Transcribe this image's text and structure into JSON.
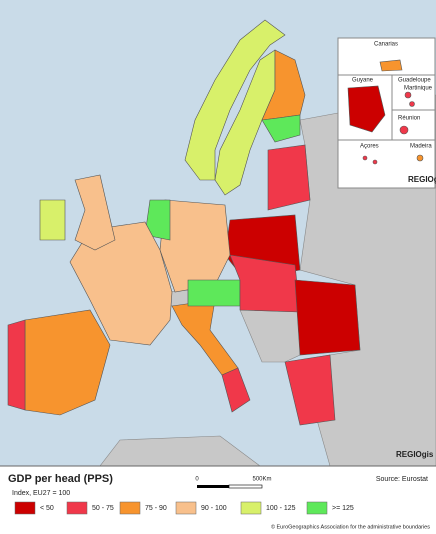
{
  "map": {
    "title": "GDP per head (PPS)",
    "subtitle": "Index, EU27 = 100",
    "source": "Source: Eurostat",
    "scale_labels": [
      "0",
      "500Km"
    ],
    "copyright": "© EuroGeographics Association for the administrative boundaries",
    "logo": "REGIOgis",
    "legend": [
      {
        "label": "< 50",
        "color": "#cc0000"
      },
      {
        "label": "50 - 75",
        "color": "#f0384a"
      },
      {
        "label": "75 - 90",
        "color": "#f7942e"
      },
      {
        "label": "90 - 100",
        "color": "#f8c08c"
      },
      {
        "label": "100 - 125",
        "color": "#d8f06a"
      },
      {
        "label": ">= 125",
        "color": "#5ee85a"
      }
    ],
    "insets": [
      "Canarias",
      "Guyane",
      "Guadeloupe",
      "Martinique",
      "Réunion",
      "Açores",
      "Madeira"
    ]
  }
}
